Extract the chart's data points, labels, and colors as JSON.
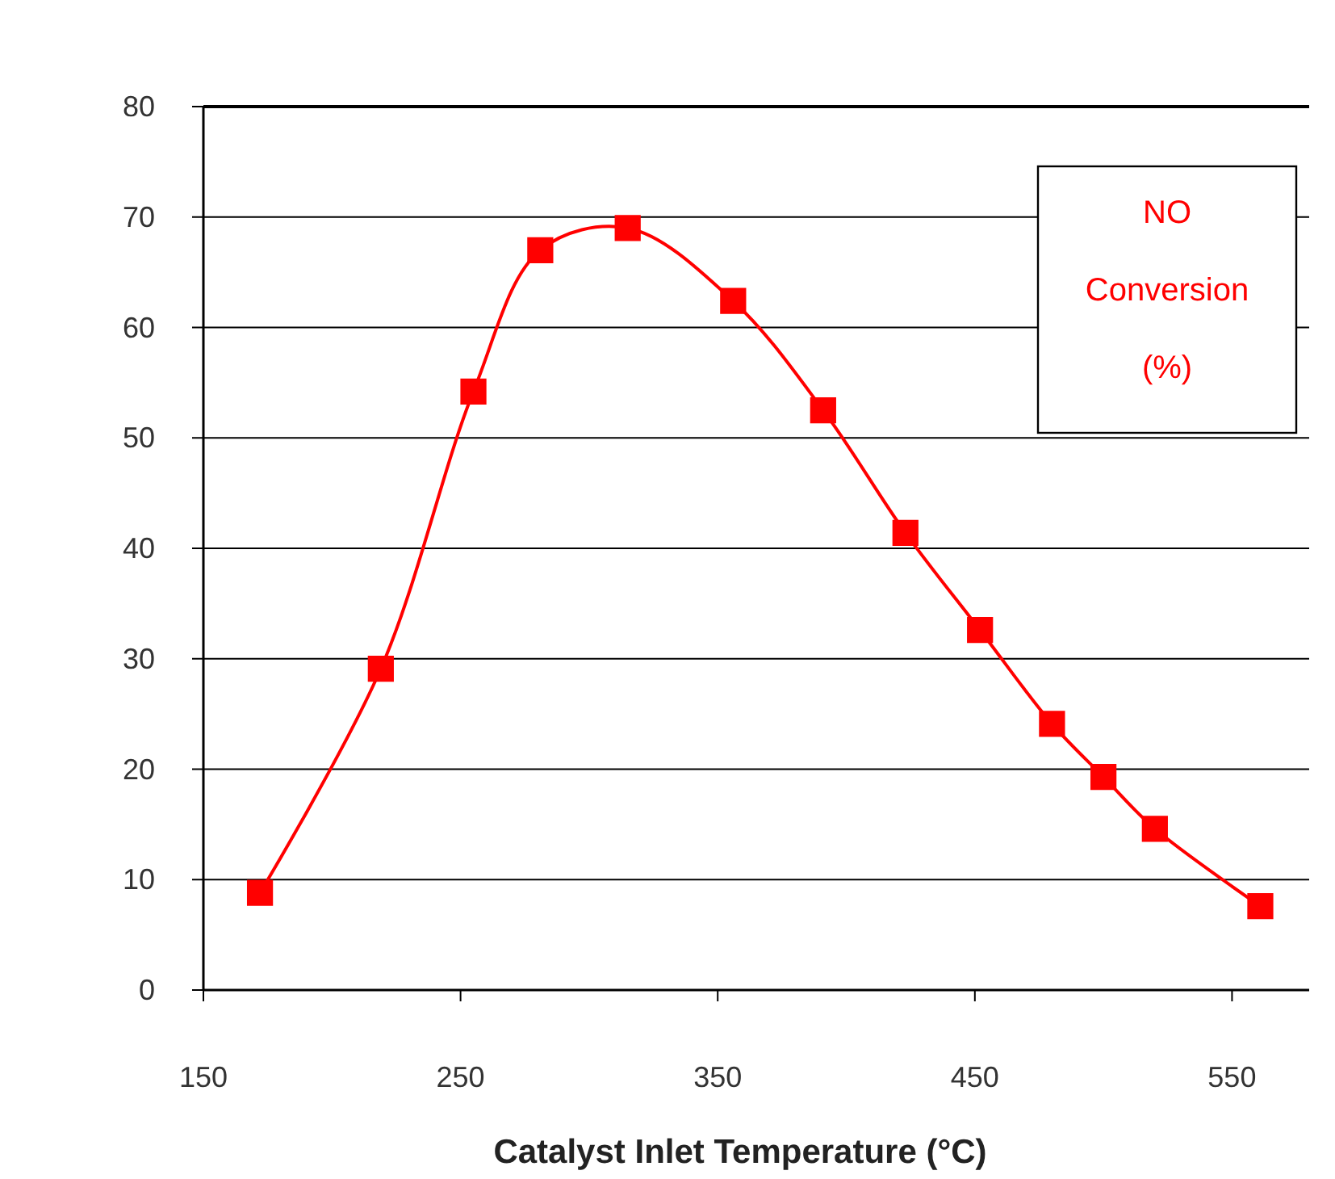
{
  "chart_data": {
    "type": "line",
    "xlabel": "Catalyst Inlet Temperature (°C)",
    "x": [
      172,
      219,
      255,
      281,
      315,
      356,
      391,
      423,
      452,
      480,
      500,
      520,
      561
    ],
    "series": [
      {
        "name": "NO Conversion (%)",
        "color": "#ff0000",
        "values": [
          8.8,
          29.1,
          54.2,
          67.0,
          69.0,
          62.4,
          52.5,
          41.4,
          32.6,
          24.1,
          19.3,
          14.6,
          7.6
        ]
      }
    ],
    "xlim": [
      150,
      580
    ],
    "xticks": [
      150,
      250,
      350,
      450,
      550
    ],
    "ylim": [
      0,
      80
    ],
    "yticks": [
      0,
      10,
      20,
      30,
      40,
      50,
      60,
      70,
      80
    ],
    "grid": "y",
    "marker": "square",
    "line_style": "solid"
  }
}
